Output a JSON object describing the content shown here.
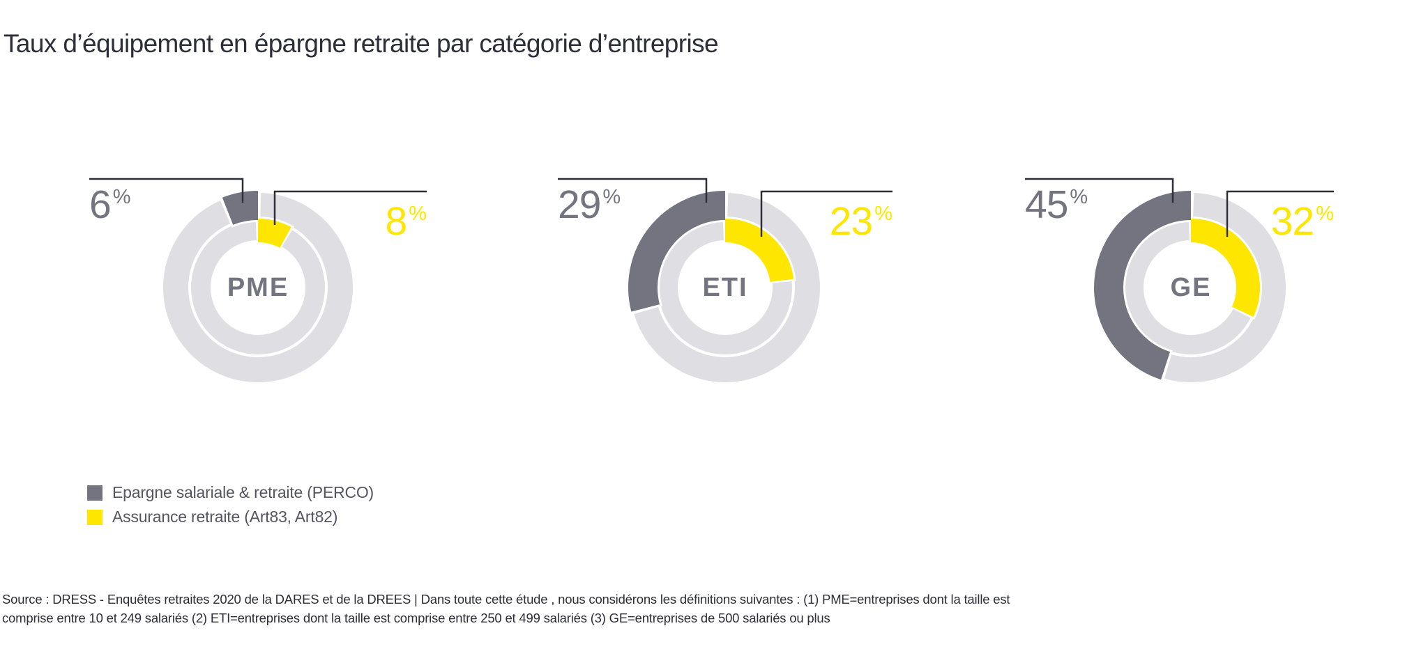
{
  "title": "Taux d’équipement en épargne retraite par catégorie d’entreprise",
  "chart_data": {
    "type": "donut",
    "title": "Taux d’équipement en épargne retraite par catégorie d’entreprise",
    "unit": "%",
    "categories": [
      "PME",
      "ETI",
      "GE"
    ],
    "series": [
      {
        "name": "Epargne salariale & retraite (PERCO)",
        "ring": "outer",
        "color": "#747480",
        "values": [
          6,
          29,
          45
        ]
      },
      {
        "name": "Assurance retraite (Art83, Art82)",
        "ring": "inner",
        "color": "#ffe600",
        "values": [
          8,
          23,
          32
        ]
      }
    ],
    "value_range": [
      0,
      100
    ],
    "track_color": "#dedee3",
    "callout_color": "#2e2e38",
    "label_color_outer_series": "#747480",
    "label_color_inner_series": "#ffe600",
    "legend_position": "bottom-left",
    "arc_layout": "arcs anchored at 12 o'clock; outer series sweeps counterclockwise, inner series sweeps clockwise"
  },
  "footer": {
    "line1": "Source : DRESS - Enquêtes retraites 2020 de la DARES et de la DREES | Dans toute cette étude , nous considérons les définitions suivantes : (1) PME=entreprises dont la taille est",
    "line2": "comprise entre 10 et 249 salariés (2) ETI=entreprises dont la taille est comprise entre 250 et 499 salariés (3) GE=entreprises de 500 salariés ou plus"
  }
}
